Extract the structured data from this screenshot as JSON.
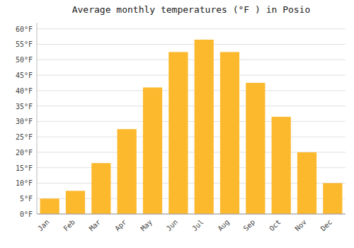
{
  "chart_data": {
    "type": "bar",
    "title": "Average monthly temperatures (°F ) in Posio",
    "categories": [
      "Jan",
      "Feb",
      "Mar",
      "Apr",
      "May",
      "Jun",
      "Jul",
      "Aug",
      "Sep",
      "Oct",
      "Nov",
      "Dec"
    ],
    "values": [
      5,
      7.5,
      16.5,
      27.5,
      41,
      52.5,
      56.5,
      52.5,
      42.5,
      31.5,
      20,
      10
    ],
    "color": "#FDB92E",
    "ylim": [
      0,
      62
    ],
    "yticks": [
      {
        "value": 0,
        "label": "0°F"
      },
      {
        "value": 5,
        "label": "5°F"
      },
      {
        "value": 10,
        "label": "10°F"
      },
      {
        "value": 15,
        "label": "15°F"
      },
      {
        "value": 20,
        "label": "20°F"
      },
      {
        "value": 25,
        "label": "25°F"
      },
      {
        "value": 30,
        "label": "30°F"
      },
      {
        "value": 35,
        "label": "35°F"
      },
      {
        "value": 40,
        "label": "40°F"
      },
      {
        "value": 45,
        "label": "45°F"
      },
      {
        "value": 50,
        "label": "50°F"
      },
      {
        "value": 55,
        "label": "55°F"
      },
      {
        "value": 60,
        "label": "60°F"
      }
    ],
    "grid": true
  }
}
